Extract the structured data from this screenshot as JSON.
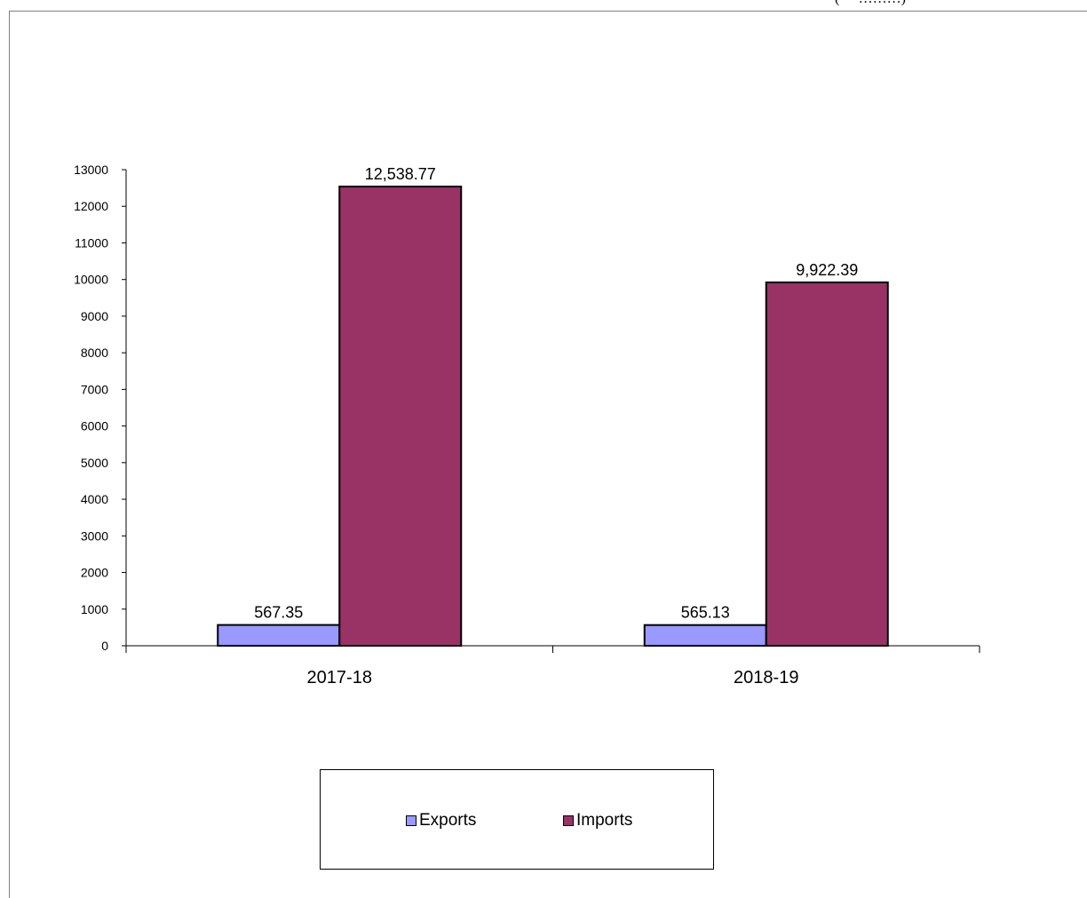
{
  "top_note": "(   ` ………)",
  "chart_data": {
    "type": "bar",
    "categories": [
      "2017-18",
      "2018-19"
    ],
    "series": [
      {
        "name": "Exports",
        "values": [
          567.35,
          565.13
        ],
        "labels": [
          "567.35",
          "565.13"
        ],
        "color": "#9999ff"
      },
      {
        "name": "Imports",
        "values": [
          12538.77,
          9922.39
        ],
        "labels": [
          "12,538.77",
          "9,922.39"
        ],
        "color": "#993366"
      }
    ],
    "yticks": [
      "0",
      "1000",
      "2000",
      "3000",
      "4000",
      "5000",
      "6000",
      "7000",
      "8000",
      "9000",
      "10000",
      "11000",
      "12000",
      "13000"
    ],
    "ylim": [
      0,
      13000
    ],
    "grid": false,
    "legend_position": "bottom"
  }
}
